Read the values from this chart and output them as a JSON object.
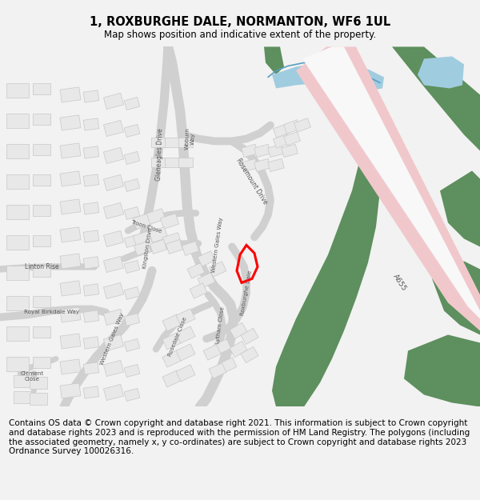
{
  "title": "1, ROXBURGHE DALE, NORMANTON, WF6 1UL",
  "subtitle": "Map shows position and indicative extent of the property.",
  "copyright_lines": [
    "Contains OS data © Crown copyright and database right 2021. This information is subject to Crown copyright and database rights 2023 and is reproduced with the permission of",
    "HM Land Registry. The polygons (including the associated geometry, namely x, y co-ordinates) are subject to Crown copyright and database rights 2023 Ordnance Survey",
    "100026316."
  ],
  "map_bg": "#ffffff",
  "green_color": "#5e8f5e",
  "pink_color": "#f0c8cc",
  "blue_color": "#a0cce0",
  "river_color": "#7ab8d8",
  "road_color": "#d0d0d0",
  "road_white": "#f8f8f8",
  "building_color": "#e8e8e8",
  "building_edge": "#c8c8c8",
  "plot_color": "#ff0000",
  "label_color": "#555555",
  "bg_color": "#f2f2f2",
  "title_fontsize": 10.5,
  "subtitle_fontsize": 8.5,
  "copyright_fontsize": 7.5
}
